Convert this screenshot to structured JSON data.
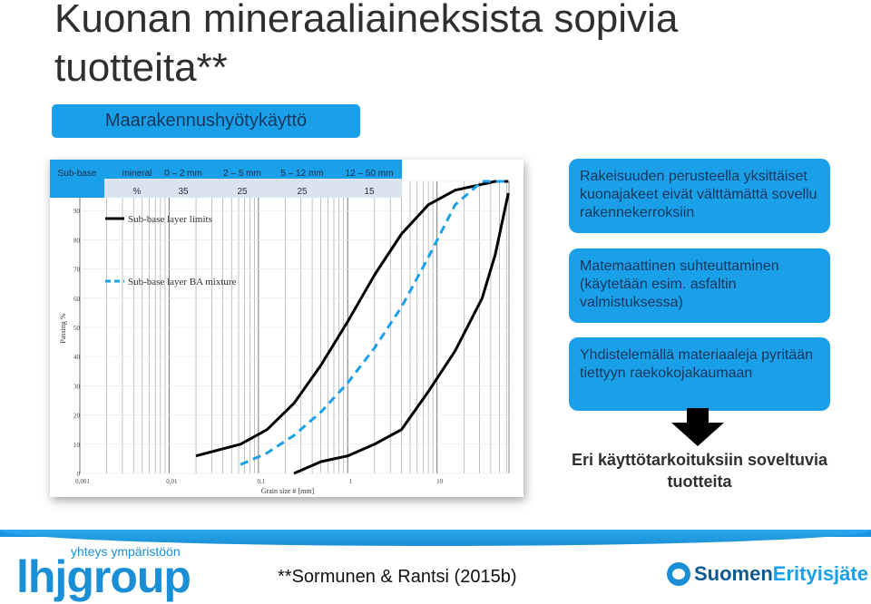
{
  "title": "Kuonan mineraaliaineksista sopivia tuotteita**",
  "subtitle": "Maarakennushyötykäyttö",
  "boxes": {
    "box1": "Rakeisuuden perusteella yksittäiset kuonajakeet eivät välttämättä sovellu rakennekerroksiin",
    "box2": "Matemaattinen suhteuttaminen (käytetään esim. asfaltin valmistuksessa)",
    "box3": "Yhdistelemällä materiaaleja pyritään tiettyyn raekokojakaumaan"
  },
  "result": "Eri käyttötarkoituksiin soveltuvia tuotteita",
  "citation": "**Sormunen & Rantsi (2015b)",
  "logo_left": {
    "small": "yhteys ympäristöön",
    "big": "lhjgroup"
  },
  "logo_right": {
    "part1": "Suomen",
    "part2": "Erityisjäte"
  },
  "colors": {
    "accent": "#1aa0e8",
    "dark_text": "#17365d",
    "series_mixture": "#1aa0e8",
    "series_limits": "#000000"
  },
  "chart_data": {
    "type": "line",
    "xlabel": "Grain size # [mm]",
    "ylabel": "Passing %",
    "x_scale": "log",
    "xlim": [
      0.001,
      64
    ],
    "ylim": [
      0,
      100
    ],
    "x_ticks": [
      "0,001",
      "0,01",
      "0,1",
      "1",
      "10"
    ],
    "y_ticks": [
      "0",
      "10",
      "20",
      "30",
      "40",
      "50",
      "60",
      "70",
      "80",
      "90"
    ],
    "grid": true,
    "legend_position": "top-left",
    "table": {
      "header": [
        "Sub-base",
        "mineral",
        "0 – 2 mm",
        "2 – 5 mm",
        "5 – 12 mm",
        "12 – 50 mm"
      ],
      "row": [
        "",
        "%",
        "35",
        "25",
        "25",
        "15"
      ]
    },
    "series": [
      {
        "name": "Sub-base layer limits",
        "style": "solid",
        "x": [
          0.02,
          0.063,
          0.125,
          0.25,
          0.5,
          1,
          2,
          4,
          8,
          16,
          32,
          45,
          63
        ],
        "y": [
          6,
          10,
          15,
          24,
          37,
          52,
          68,
          82,
          92,
          97,
          99,
          100,
          100
        ]
      },
      {
        "name": "",
        "style": "solid",
        "x": [
          0.25,
          0.5,
          1,
          2,
          4,
          8,
          16,
          32,
          45,
          63
        ],
        "y": [
          0,
          4,
          6,
          10,
          15,
          28,
          42,
          60,
          75,
          96
        ]
      },
      {
        "name": "Sub-base layer BA mixture",
        "style": "dashed",
        "x": [
          0.063,
          0.125,
          0.25,
          0.5,
          1,
          2,
          4,
          8,
          16,
          32,
          45,
          63
        ],
        "y": [
          3,
          7,
          13,
          21,
          31,
          43,
          57,
          74,
          92,
          100,
          100,
          100
        ]
      }
    ]
  }
}
